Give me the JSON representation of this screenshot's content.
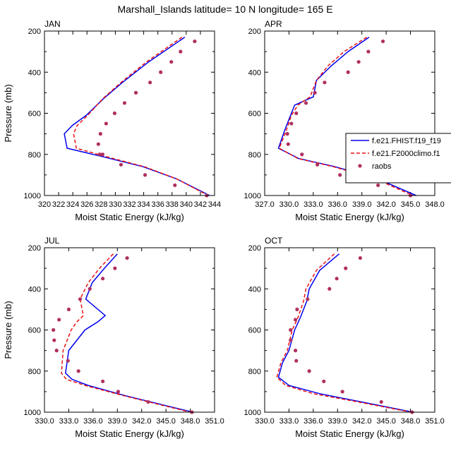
{
  "title": "Marshall_Islands  latitude= 10 N longitude= 165 E",
  "legend": {
    "entries": [
      {
        "label": "f.e21.FHIST.f19_f19",
        "color": "#0000ee",
        "style": "solid"
      },
      {
        "label": "f.e21.F2000climo.f1",
        "color": "#ee1111",
        "style": "dashed"
      },
      {
        "label": "raobs",
        "color": "#b03060",
        "style": "dot"
      }
    ]
  },
  "chart_data": [
    {
      "type": "line",
      "title": "JAN",
      "xlabel": "Moist Static Energy (kJ/kg)",
      "ylabel": "Pressure (mb)",
      "xlim": [
        320,
        344
      ],
      "ylim": [
        1000,
        200
      ],
      "xticks": [
        "320",
        "322",
        "324",
        "326",
        "328",
        "330",
        "332",
        "334",
        "336",
        "338",
        "340",
        "342",
        "344"
      ],
      "yticks": [
        "200",
        "400",
        "600",
        "800",
        "1000"
      ],
      "series": [
        {
          "name": "f.e21.FHIST.f19_f19",
          "x": [
            339.8,
            334.7,
            331.0,
            328.3,
            325.9,
            323.9,
            322.8,
            323.2,
            328.1,
            333.9,
            338.7,
            343.3
          ],
          "y": [
            230,
            350,
            450,
            530,
            610,
            660,
            700,
            770,
            810,
            860,
            920,
            1000
          ]
        },
        {
          "name": "f.e21.F2000climo.f1",
          "x": [
            339.4,
            334.4,
            330.8,
            328.2,
            326.1,
            324.6,
            324.1,
            324.5,
            328.6,
            334.1,
            338.7,
            343.1
          ],
          "y": [
            230,
            350,
            450,
            530,
            610,
            660,
            700,
            770,
            810,
            860,
            920,
            1000
          ]
        },
        {
          "name": "raobs",
          "marker": "dot",
          "x": [
            341.2,
            339.2,
            337.9,
            336.4,
            334.9,
            332.9,
            331.3,
            329.9,
            328.7,
            327.9,
            327.6,
            327.8,
            328.2,
            330.8,
            334.2,
            338.4,
            342.9
          ],
          "y": [
            250,
            300,
            350,
            400,
            450,
            500,
            550,
            600,
            650,
            700,
            750,
            800,
            800,
            850,
            900,
            950,
            1000
          ]
        }
      ]
    },
    {
      "type": "line",
      "title": "APR",
      "xlabel": "Moist Static Energy (kJ/kg)",
      "ylabel": "",
      "xlim": [
        327,
        348
      ],
      "ylim": [
        1000,
        200
      ],
      "xticks": [
        "327.0",
        "330.0",
        "333.0",
        "336.0",
        "339.0",
        "342.0",
        "345.0",
        "348.0"
      ],
      "yticks": [
        "200",
        "400",
        "600",
        "800",
        "1000"
      ],
      "series": [
        {
          "name": "f.e21.FHIST.f19_f19",
          "x": [
            339.9,
            337.3,
            335.2,
            333.4,
            333.0,
            330.7,
            330.2,
            329.5,
            328.7,
            331.2,
            335.7,
            341.0,
            345.7
          ],
          "y": [
            230,
            300,
            370,
            440,
            520,
            560,
            610,
            680,
            770,
            820,
            860,
            920,
            1000
          ]
        },
        {
          "name": "f.e21.F2000climo.f1",
          "x": [
            339.6,
            336.8,
            334.8,
            333.4,
            332.6,
            331.1,
            330.3,
            329.7,
            328.8,
            331.1,
            335.5,
            340.7,
            345.3
          ],
          "y": [
            230,
            300,
            370,
            440,
            520,
            560,
            610,
            680,
            770,
            820,
            860,
            920,
            1000
          ]
        },
        {
          "name": "raobs",
          "marker": "dot",
          "x": [
            341.6,
            339.8,
            338.6,
            337.3,
            334.4,
            333.2,
            332.1,
            330.9,
            330.3,
            329.8,
            329.9,
            331.6,
            333.5,
            336.3,
            341.0,
            345.0
          ],
          "y": [
            250,
            300,
            350,
            400,
            450,
            500,
            550,
            600,
            650,
            700,
            750,
            800,
            850,
            900,
            950,
            1000
          ]
        }
      ]
    },
    {
      "type": "line",
      "title": "JUL",
      "xlabel": "Moist Static Energy (kJ/kg)",
      "ylabel": "Pressure (mb)",
      "xlim": [
        330,
        351
      ],
      "ylim": [
        1000,
        200
      ],
      "xticks": [
        "330.0",
        "333.0",
        "336.0",
        "339.0",
        "342.0",
        "345.0",
        "348.0",
        "351.0"
      ],
      "yticks": [
        "200",
        "400",
        "600",
        "800",
        "1000"
      ],
      "series": [
        {
          "name": "f.e21.FHIST.f19_f19",
          "x": [
            339.0,
            337.4,
            335.9,
            335.1,
            337.5,
            336.6,
            335.0,
            333.0,
            332.6,
            333.4,
            335.4,
            340.0,
            348.3
          ],
          "y": [
            230,
            300,
            370,
            450,
            530,
            560,
            600,
            700,
            810,
            840,
            870,
            920,
            1000
          ]
        },
        {
          "name": "f.e21.F2000climo.f1",
          "x": [
            338.5,
            336.8,
            335.4,
            334.4,
            334.8,
            334.0,
            333.3,
            332.3,
            332.1,
            332.7,
            335.0,
            339.8,
            348.0
          ],
          "y": [
            230,
            300,
            370,
            450,
            530,
            560,
            600,
            700,
            810,
            840,
            870,
            920,
            1000
          ]
        },
        {
          "name": "raobs",
          "marker": "dot",
          "x": [
            340.2,
            338.7,
            337.2,
            335.6,
            334.4,
            333.0,
            331.8,
            331.1,
            331.2,
            331.5,
            332.9,
            334.2,
            337.2,
            339.1,
            342.8,
            348.2
          ],
          "y": [
            250,
            300,
            350,
            400,
            450,
            500,
            550,
            600,
            650,
            700,
            750,
            800,
            850,
            900,
            950,
            1000
          ]
        }
      ]
    },
    {
      "type": "line",
      "title": "OCT",
      "xlabel": "Moist Static Energy (kJ/kg)",
      "ylabel": "",
      "xlim": [
        330,
        351
      ],
      "ylim": [
        1000,
        200
      ],
      "xticks": [
        "330.0",
        "333.0",
        "336.0",
        "339.0",
        "342.0",
        "345.0",
        "348.0",
        "351.0"
      ],
      "yticks": [
        "200",
        "400",
        "600",
        "800",
        "1000"
      ],
      "series": [
        {
          "name": "f.e21.FHIST.f19_f19",
          "x": [
            339.2,
            336.8,
            335.5,
            335.2,
            334.4,
            333.7,
            333.0,
            332.2,
            331.7,
            333.0,
            336.8,
            341.9,
            348.3
          ],
          "y": [
            230,
            310,
            400,
            460,
            540,
            600,
            700,
            760,
            830,
            870,
            910,
            950,
            1000
          ]
        },
        {
          "name": "f.e21.F2000climo.f1",
          "x": [
            338.6,
            336.4,
            335.1,
            334.8,
            334.1,
            333.4,
            332.8,
            332.0,
            331.5,
            332.6,
            336.0,
            341.5,
            348.1
          ],
          "y": [
            230,
            310,
            400,
            460,
            540,
            600,
            700,
            760,
            830,
            870,
            910,
            950,
            1000
          ]
        },
        {
          "name": "raobs",
          "marker": "dot",
          "x": [
            341.8,
            340.0,
            338.9,
            338.0,
            335.3,
            334.0,
            333.8,
            333.2,
            333.2,
            333.8,
            333.9,
            335.5,
            337.3,
            339.6,
            344.4,
            348.2
          ],
          "y": [
            250,
            300,
            350,
            400,
            450,
            500,
            550,
            600,
            650,
            700,
            750,
            800,
            850,
            900,
            950,
            1000
          ]
        }
      ]
    }
  ]
}
